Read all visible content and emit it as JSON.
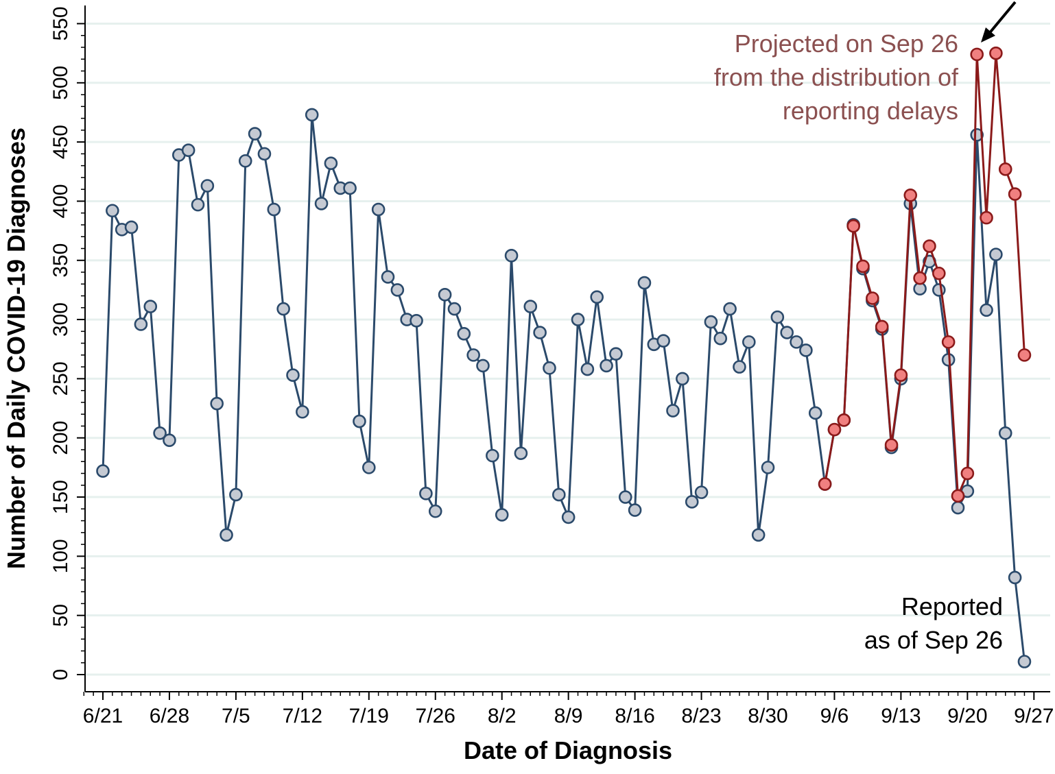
{
  "chart_data": {
    "type": "line",
    "xlabel": "Date of Diagnosis",
    "ylabel": "Number of Daily COVID-19 Diagnoses",
    "ylim": [
      0,
      550
    ],
    "xlim": [
      "2020-06-19",
      "2020-09-27"
    ],
    "grid": "horizontal",
    "y_ticks": [
      0,
      50,
      100,
      150,
      200,
      250,
      300,
      350,
      400,
      450,
      500,
      550
    ],
    "x_tick_labels": [
      "6/21",
      "6/28",
      "7/5",
      "7/12",
      "7/19",
      "7/26",
      "8/2",
      "8/9",
      "8/16",
      "8/23",
      "8/30",
      "9/6",
      "9/13",
      "9/20",
      "9/27"
    ],
    "x_tick_dates": [
      "2020-06-21",
      "2020-06-28",
      "2020-07-05",
      "2020-07-12",
      "2020-07-19",
      "2020-07-26",
      "2020-08-02",
      "2020-08-09",
      "2020-08-16",
      "2020-08-23",
      "2020-08-30",
      "2020-09-06",
      "2020-09-13",
      "2020-09-20",
      "2020-09-27"
    ],
    "colors": {
      "reported": "#2b4a6b",
      "reported_marker_fill": "#c5cad3",
      "projected": "#8b1a1a",
      "projected_marker_fill": "#f08080",
      "grid": "#e6f0ee"
    },
    "annotations": {
      "projected_text": [
        "Projected on Sep 26",
        "from the distribution of",
        "reporting delays"
      ],
      "reported_text": [
        "Reported",
        "as of Sep 26"
      ]
    },
    "series": [
      {
        "start_date": "2020-06-21",
        "values": [
          172,
          392,
          376,
          378,
          296,
          311,
          204,
          198,
          439,
          443,
          397,
          413,
          229,
          118,
          152,
          434,
          457,
          440,
          393,
          309,
          253,
          222,
          473,
          398,
          432,
          411,
          411,
          214,
          175,
          393,
          336,
          325,
          300,
          299,
          153,
          138,
          321,
          309,
          288,
          270,
          261,
          185,
          135,
          354,
          187,
          311,
          289,
          259,
          152,
          133,
          300,
          258,
          319,
          261,
          271,
          150,
          139,
          331,
          279,
          282,
          223,
          250,
          146,
          154,
          298,
          284,
          309,
          260,
          281,
          118,
          175,
          302,
          289,
          281,
          274,
          221,
          161,
          207,
          215,
          380,
          343,
          316,
          292,
          192,
          250,
          398,
          326,
          349,
          325,
          266,
          141,
          155,
          456,
          308,
          355,
          204,
          82,
          11
        ]
      },
      {
        "start_date": "2020-09-05",
        "values": [
          161,
          207,
          215,
          379,
          345,
          318,
          294,
          194,
          253,
          405,
          335,
          362,
          339,
          281,
          151,
          170,
          524,
          386,
          525,
          427,
          406,
          270
        ]
      }
    ]
  }
}
